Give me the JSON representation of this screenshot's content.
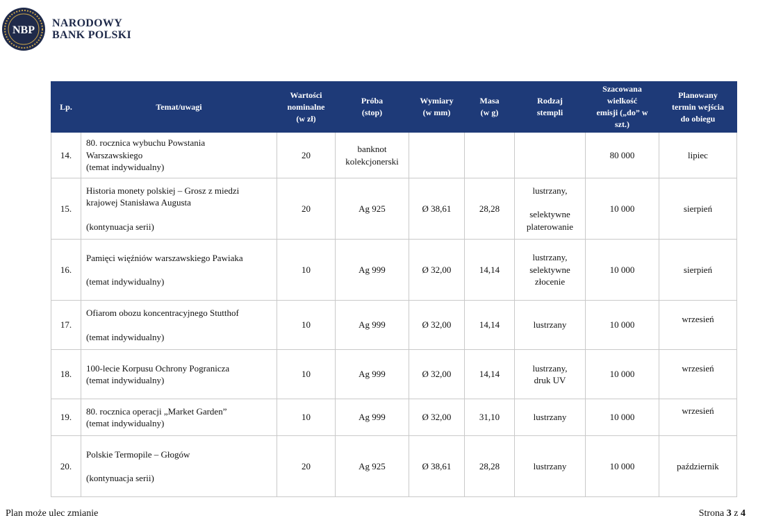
{
  "header": {
    "logo_text": "NBP",
    "bank_name_line1": "NARODOWY",
    "bank_name_line2": "BANK POLSKI"
  },
  "table": {
    "columns": {
      "lp": "Lp.",
      "topic": "Temat/uwagi",
      "value": [
        "Wartości",
        "nominalne",
        "(w zł)"
      ],
      "fineness": [
        "Próba",
        "(stop)"
      ],
      "dimensions": [
        "Wymiary",
        "(w mm)"
      ],
      "mass": [
        "Masa",
        "(w g)"
      ],
      "stamp": [
        "Rodzaj",
        "stempli"
      ],
      "emission": [
        "Szacowana",
        "wielkość",
        "emisji („do” w",
        "szt.)"
      ],
      "date": [
        "Planowany",
        "termin wejścia",
        "do obiegu"
      ]
    },
    "rows": [
      {
        "lp": "14.",
        "topic": [
          "80. rocznica wybuchu Powstania",
          "Warszawskiego",
          "(temat indywidualny)"
        ],
        "value": "20",
        "fineness": [
          "banknot",
          "kolekcjonerski"
        ],
        "dimensions": "",
        "mass": "",
        "stamp": [],
        "emission": "80 000",
        "date": "lipiec"
      },
      {
        "lp": "15.",
        "topic": [
          "Historia monety polskiej – Grosz z miedzi",
          "krajowej Stanisława Augusta",
          "",
          "(kontynuacja serii)"
        ],
        "value": "20",
        "fineness": [
          "Ag 925"
        ],
        "dimensions": "Ø 38,61",
        "mass": "28,28",
        "stamp": [
          "lustrzany,",
          "",
          "selektywne",
          "platerowanie"
        ],
        "emission": "10 000",
        "date": "sierpień"
      },
      {
        "lp": "16.",
        "topic": [
          "Pamięci  więźniów warszawskiego Pawiaka",
          "",
          "(temat indywidualny)"
        ],
        "value": "10",
        "fineness": [
          "Ag 999"
        ],
        "dimensions": "Ø 32,00",
        "mass": "14,14",
        "stamp": [
          "lustrzany,",
          "selektywne",
          "złocenie"
        ],
        "emission": "10 000",
        "date": "sierpień"
      },
      {
        "lp": "17.",
        "topic": [
          "Ofiarom obozu koncentracyjnego Stutthof",
          "",
          "(temat indywidualny)"
        ],
        "value": "10",
        "fineness": [
          "Ag 999"
        ],
        "dimensions": "Ø 32,00",
        "mass": "14,14",
        "stamp": [
          "lustrzany"
        ],
        "emission": "10 000",
        "date": "wrzesień"
      },
      {
        "lp": "18.",
        "topic": [
          "100-lecie Korpusu Ochrony Pogranicza",
          "(temat indywidualny)"
        ],
        "value": "10",
        "fineness": [
          "Ag 999"
        ],
        "dimensions": "Ø 32,00",
        "mass": "14,14",
        "stamp": [
          "lustrzany,",
          "druk UV"
        ],
        "emission": "10 000",
        "date": "wrzesień"
      },
      {
        "lp": "19.",
        "topic": [
          "80. rocznica operacji „Market Garden”",
          "(temat indywidualny)"
        ],
        "value": "10",
        "fineness": [
          "Ag 999"
        ],
        "dimensions": "Ø 32,00",
        "mass": "31,10",
        "stamp": [
          "lustrzany"
        ],
        "emission": "10 000",
        "date": "wrzesień"
      },
      {
        "lp": "20.",
        "topic": [
          "Polskie Termopile – Głogów",
          "",
          "(kontynuacja serii)"
        ],
        "value": "20",
        "fineness": [
          "Ag 925"
        ],
        "dimensions": "Ø 38,61",
        "mass": "28,28",
        "stamp": [
          "lustrzany"
        ],
        "emission": "10 000",
        "date": "październik"
      }
    ]
  },
  "footer": {
    "note": "Plan może ulec zmianie",
    "page_prefix": "Strona",
    "page_current": "3",
    "page_sep": "z",
    "page_total": "4"
  },
  "colors": {
    "header_bg": "#1e3a78",
    "logo_ring": "#1f2a4a",
    "logo_gold": "#c9a44a"
  }
}
